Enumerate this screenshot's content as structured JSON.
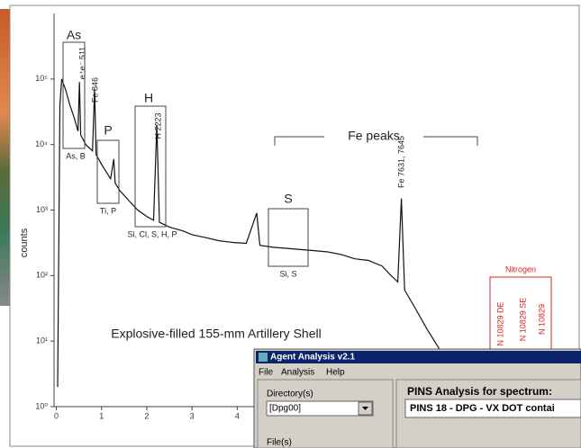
{
  "chart_data": {
    "type": "line",
    "title": "Explosive-filled 155-mm Artillery Shell",
    "ylabel": "counts",
    "log_y": true,
    "color": "#111111",
    "x": [
      0.03,
      0.08,
      0.12,
      0.2,
      0.3,
      0.4,
      0.48,
      0.511,
      0.54,
      0.65,
      0.8,
      0.846,
      0.88,
      1.0,
      1.2,
      1.27,
      1.3,
      1.4,
      1.6,
      1.8,
      2.0,
      2.15,
      2.223,
      2.28,
      2.5,
      2.8,
      3.0,
      3.3,
      3.6,
      3.9,
      4.2,
      4.43,
      4.5,
      4.8,
      5.1,
      5.4,
      5.7,
      6.0,
      6.3,
      6.6,
      6.9,
      7.2,
      7.4,
      7.55,
      7.63,
      7.7,
      7.9,
      8.2,
      8.5,
      8.8,
      9.1
    ],
    "values": [
      2,
      40000,
      100000,
      70000,
      40000,
      25000,
      16000,
      90000,
      14000,
      10000,
      8000,
      70000,
      7000,
      5000,
      3000,
      6000,
      2600,
      2000,
      1400,
      1000,
      800,
      700,
      20000,
      650,
      550,
      480,
      420,
      380,
      340,
      320,
      310,
      900,
      290,
      270,
      260,
      250,
      240,
      230,
      210,
      180,
      170,
      140,
      100,
      80,
      1500,
      60,
      35,
      15,
      7,
      4,
      2
    ],
    "xlim": [
      -0.05,
      11.6
    ],
    "ylim": [
      1,
      1000000
    ],
    "xticks": [
      0,
      1,
      2,
      3,
      4
    ],
    "yticks": [
      {
        "value": 1,
        "label": "10⁰"
      },
      {
        "value": 10,
        "label": "10¹"
      },
      {
        "value": 100,
        "label": "10²"
      },
      {
        "value": 1000,
        "label": "10³"
      },
      {
        "value": 10000,
        "label": "10⁴"
      },
      {
        "value": 100000,
        "label": "10⁵"
      }
    ],
    "annotations": [
      "As",
      "e⁺e⁻ 511",
      "Fe 846",
      "As, B",
      "P",
      "Ti, P",
      "H",
      "H 2223",
      "Si, Cl, S, H, P",
      "Fe peaks",
      "S",
      "Si, S",
      "Fe 7631, 7645",
      "Nitrogen",
      "N 10829 DE",
      "N 10829 SE",
      "N 10829"
    ]
  },
  "window": {
    "title": "Agent Analysis v2.1",
    "menu": [
      "File",
      "Analysis",
      "Help"
    ],
    "directory_label": "Directory(s)",
    "directory_value": "[Dpg00]",
    "files_label": "File(s)",
    "heading": "PINS Analysis for spectrum:",
    "spectrum": "PINS 18 - DPG - VX DOT contai"
  }
}
